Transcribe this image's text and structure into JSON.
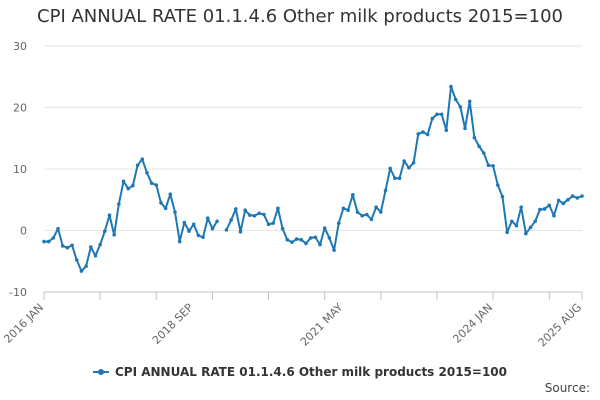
{
  "chart_data": {
    "type": "line",
    "title": "CPI ANNUAL RATE 01.1.4.6 Other milk products 2015=100",
    "xlabel": "",
    "ylabel": "",
    "ylim": [
      -10,
      30
    ],
    "yticks": [
      -10,
      0,
      10,
      20,
      30
    ],
    "x_start": "2016 JAN",
    "x_end": "2025 AUG",
    "xtick_labels": [
      {
        "index": 0,
        "label": "2016 JAN"
      },
      {
        "index": 32,
        "label": "2018 SEP"
      },
      {
        "index": 64,
        "label": "2021 MAY"
      },
      {
        "index": 96,
        "label": "2024 JAN"
      },
      {
        "index": 115,
        "label": "2025 AUG"
      }
    ],
    "series": [
      {
        "name": "CPI ANNUAL RATE 01.1.4.6 Other milk products 2015=100",
        "color": "#1f78b4",
        "values": [
          -1.8,
          -1.8,
          -1.2,
          0.3,
          -2.5,
          -2.8,
          -2.4,
          -4.8,
          -6.6,
          -5.8,
          -2.7,
          -4.1,
          -2.3,
          -0.1,
          2.5,
          -0.7,
          4.3,
          8.0,
          6.8,
          7.3,
          10.6,
          11.6,
          9.4,
          7.7,
          7.4,
          4.5,
          3.6,
          5.9,
          3.0,
          -1.8,
          1.3,
          -0.1,
          1.0,
          -0.8,
          -1.1,
          2.0,
          0.3,
          1.5,
          null,
          0.1,
          1.7,
          3.5,
          -0.2,
          3.3,
          2.5,
          2.4,
          2.8,
          2.6,
          1.0,
          1.2,
          3.6,
          0.3,
          -1.5,
          -1.9,
          -1.4,
          -1.5,
          -2.1,
          -1.2,
          -1.1,
          -2.3,
          0.4,
          -1.2,
          -3.2,
          1.2,
          3.6,
          3.3,
          5.8,
          3.0,
          2.4,
          2.6,
          1.8,
          3.8,
          3.0,
          6.5,
          10.1,
          8.5,
          8.5,
          11.3,
          10.2,
          11.0,
          15.7,
          16.0,
          15.6,
          18.2,
          18.9,
          18.9,
          16.3,
          23.4,
          21.3,
          20.1,
          16.6,
          21.0,
          15.1,
          13.7,
          12.6,
          10.6,
          10.5,
          7.4,
          5.5,
          -0.3,
          1.5,
          0.8,
          3.8,
          -0.5,
          0.5,
          1.5,
          3.4,
          3.5,
          4.1,
          2.4,
          4.9,
          4.4,
          5.0,
          5.6,
          5.3,
          5.6
        ]
      }
    ]
  },
  "legend": {
    "label": "CPI ANNUAL RATE 01.1.4.6 Other milk products 2015=100"
  },
  "footer": {
    "source_label": "Source:"
  }
}
